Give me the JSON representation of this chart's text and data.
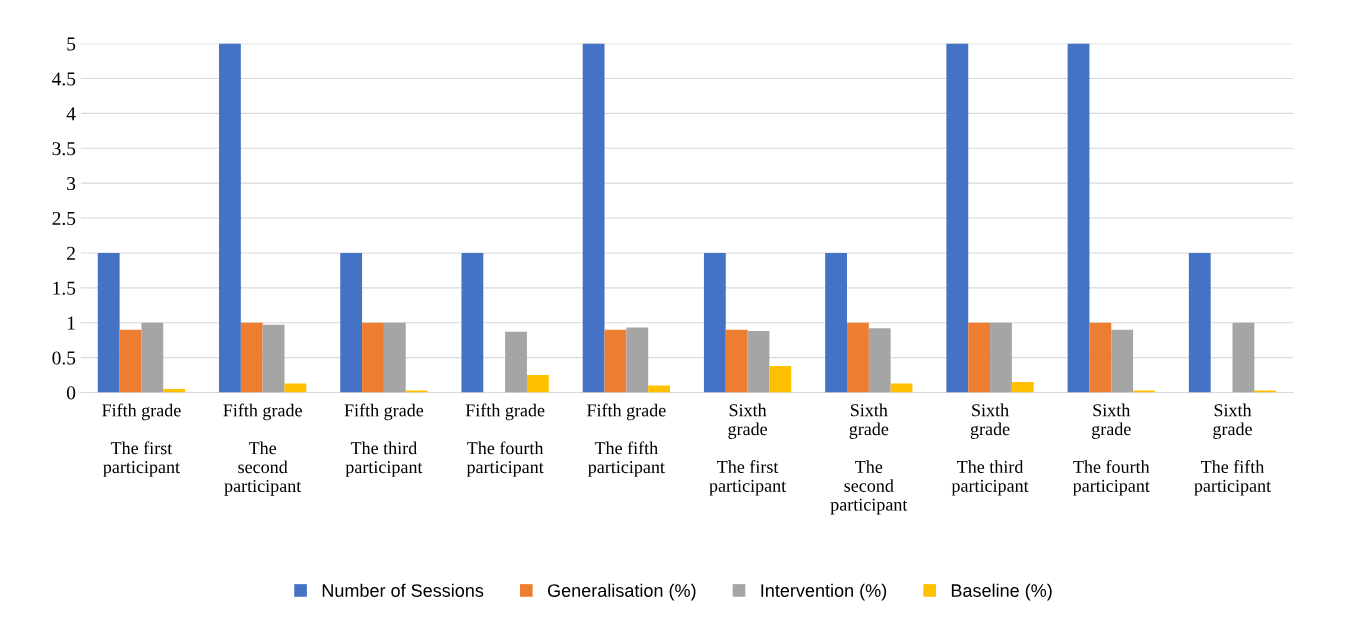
{
  "chart_data": {
    "type": "bar",
    "categories": [
      "Fifth grade\n\nThe first\nparticipant",
      "Fifth grade\n\nThe\nsecond\nparticipant",
      "Fifth grade\n\nThe third\nparticipant",
      "Fifth grade\n\nThe fourth\nparticipant",
      "Fifth grade\n\nThe fifth\nparticipant",
      "Sixth\ngrade\n\nThe first\nparticipant",
      "Sixth\ngrade\n\nThe\nsecond\nparticipant",
      "Sixth\ngrade\n\nThe third\nparticipant",
      "Sixth\ngrade\n\nThe fourth\nparticipant",
      "Sixth\ngrade\n\nThe fifth\nparticipant"
    ],
    "series": [
      {
        "name": "Number of Sessions",
        "color": "#4472c4",
        "values": [
          2,
          5,
          2,
          2,
          5,
          2,
          2,
          5,
          5,
          2
        ]
      },
      {
        "name": "Generalisation (%)",
        "color": "#ed7d31",
        "values": [
          0.9,
          1,
          1,
          0,
          0.9,
          0.9,
          1,
          1,
          1,
          0
        ]
      },
      {
        "name": "Intervention (%)",
        "color": "#a5a5a5",
        "values": [
          1,
          0.97,
          1,
          0.87,
          0.93,
          0.88,
          0.92,
          1,
          0.9,
          1
        ]
      },
      {
        "name": "Baseline (%)",
        "color": "#ffc000",
        "values": [
          0.05,
          0.13,
          0.03,
          0.25,
          0.1,
          0.38,
          0.13,
          0.15,
          0.03,
          0.03
        ]
      }
    ],
    "ylim": [
      0,
      5
    ],
    "yticks": [
      0,
      0.5,
      1,
      1.5,
      2,
      2.5,
      3,
      3.5,
      4,
      4.5,
      5
    ],
    "grid": "y",
    "legend": "bottom"
  }
}
